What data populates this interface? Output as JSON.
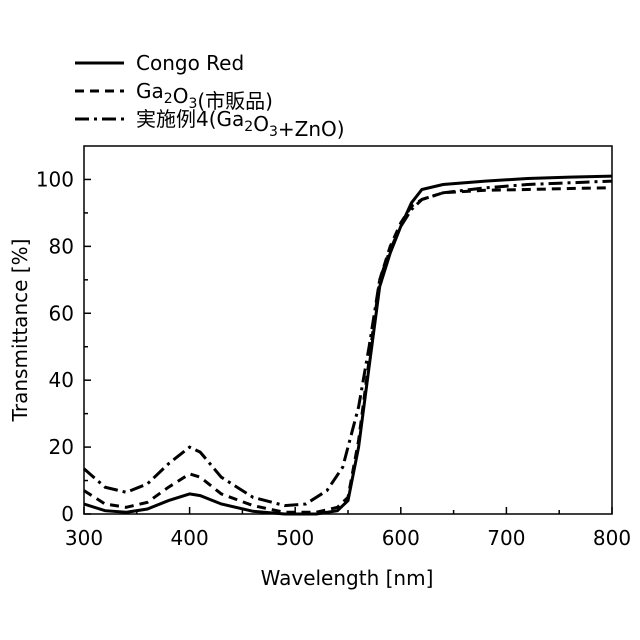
{
  "chart_data": {
    "type": "line",
    "title": "",
    "xlabel": "Wavelength [nm]",
    "ylabel": "Transmittance [%]",
    "xlim": [
      300,
      800
    ],
    "ylim": [
      0,
      110
    ],
    "xticks": [
      300,
      400,
      500,
      600,
      700,
      800
    ],
    "yticks": [
      0,
      20,
      40,
      60,
      80,
      100
    ],
    "legend_position": "top-left, above plot",
    "grid": false,
    "series": [
      {
        "name": "Congo Red",
        "line_style": "solid",
        "color": "#000000",
        "points": [
          [
            300,
            3
          ],
          [
            320,
            1
          ],
          [
            340,
            0.5
          ],
          [
            360,
            1.5
          ],
          [
            380,
            4
          ],
          [
            400,
            6
          ],
          [
            410,
            5.5
          ],
          [
            430,
            3
          ],
          [
            460,
            0.8
          ],
          [
            490,
            0
          ],
          [
            520,
            0
          ],
          [
            540,
            1
          ],
          [
            550,
            4
          ],
          [
            560,
            20
          ],
          [
            570,
            44
          ],
          [
            580,
            68
          ],
          [
            590,
            78
          ],
          [
            600,
            86
          ],
          [
            610,
            93
          ],
          [
            620,
            97
          ],
          [
            640,
            98.5
          ],
          [
            680,
            99.5
          ],
          [
            720,
            100.3
          ],
          [
            760,
            100.7
          ],
          [
            800,
            101
          ]
        ]
      },
      {
        "name": "Ga2O3(市販品)",
        "line_style": "dashed",
        "color": "#000000",
        "points": [
          [
            300,
            7
          ],
          [
            320,
            3
          ],
          [
            340,
            2
          ],
          [
            360,
            3.5
          ],
          [
            380,
            8
          ],
          [
            400,
            12
          ],
          [
            410,
            11
          ],
          [
            430,
            6
          ],
          [
            460,
            2.5
          ],
          [
            490,
            0.5
          ],
          [
            520,
            0.5
          ],
          [
            540,
            2
          ],
          [
            550,
            5
          ],
          [
            560,
            22
          ],
          [
            570,
            46
          ],
          [
            580,
            70
          ],
          [
            590,
            80
          ],
          [
            600,
            87
          ],
          [
            610,
            92
          ],
          [
            620,
            94
          ],
          [
            640,
            96
          ],
          [
            680,
            96.8
          ],
          [
            720,
            97
          ],
          [
            760,
            97.3
          ],
          [
            800,
            97.5
          ]
        ]
      },
      {
        "name": "実施例4(Ga2O3+ZnO)",
        "line_style": "dash-dot",
        "color": "#000000",
        "points": [
          [
            300,
            13.5
          ],
          [
            320,
            8
          ],
          [
            340,
            6.5
          ],
          [
            360,
            9
          ],
          [
            380,
            15
          ],
          [
            400,
            20
          ],
          [
            410,
            18.5
          ],
          [
            430,
            11
          ],
          [
            460,
            5
          ],
          [
            490,
            2.5
          ],
          [
            510,
            3
          ],
          [
            530,
            7
          ],
          [
            545,
            14
          ],
          [
            560,
            32
          ],
          [
            570,
            50
          ],
          [
            580,
            70
          ],
          [
            590,
            79
          ],
          [
            600,
            86
          ],
          [
            610,
            91
          ],
          [
            620,
            94
          ],
          [
            640,
            96
          ],
          [
            680,
            97.5
          ],
          [
            720,
            98.5
          ],
          [
            760,
            99
          ],
          [
            800,
            99.5
          ]
        ]
      }
    ]
  },
  "legend": {
    "items": [
      {
        "label_main": "Congo Red",
        "style": "solid"
      },
      {
        "label_main": "Ga2O3(市販品)",
        "style": "dashed"
      },
      {
        "label_main": "実施例4(Ga2O3+ZnO)",
        "style": "dash-dot"
      }
    ]
  }
}
